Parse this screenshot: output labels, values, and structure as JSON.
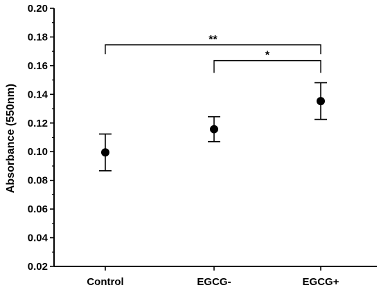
{
  "chart_data": {
    "type": "scatter",
    "ylabel": "Absorbance (550nm)",
    "xlabel": "",
    "categories": [
      "Control",
      "EGCG-",
      "EGCG+"
    ],
    "series": [
      {
        "values": [
          0.0995,
          0.1157,
          0.1353
        ],
        "error": [
          0.0128,
          0.0087,
          0.0128
        ],
        "color": "#000000",
        "marker": "filled-circle"
      }
    ],
    "ylim": [
      0.02,
      0.2
    ],
    "yticks": [
      "0.02",
      "0.04",
      "0.06",
      "0.08",
      "0.10",
      "0.12",
      "0.14",
      "0.16",
      "0.18",
      "0.20"
    ],
    "grid": false,
    "legend": "none",
    "significance": [
      {
        "from": "Control",
        "to": "EGCG+",
        "label": "**"
      },
      {
        "from": "EGCG-",
        "to": "EGCG+",
        "label": "*"
      }
    ]
  }
}
